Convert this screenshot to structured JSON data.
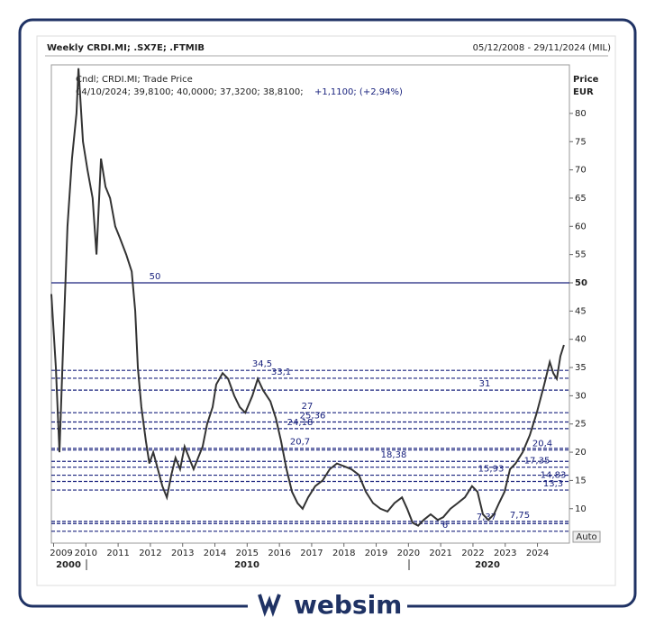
{
  "chart_data": {
    "type": "line",
    "title": "Weekly CRDI.MI; .SX7E; .FTMIB",
    "date_range": "05/12/2008 - 29/11/2024 (MIL)",
    "legend": [
      "Cndl; CRDI.MI; Trade Price",
      "04/10/2024; 39,8100; 40,0000; 37,3200; 38,8100;",
      "+1,1100; (+2,94%)"
    ],
    "y_label": [
      "Price",
      "EUR"
    ],
    "x": [
      2008.93,
      2009.07,
      2009.18,
      2009.29,
      2009.43,
      2009.57,
      2009.71,
      2009.77,
      2009.91,
      2010.05,
      2010.21,
      2010.33,
      2010.47,
      2010.61,
      2010.75,
      2010.91,
      2011.05,
      2011.25,
      2011.42,
      2011.53,
      2011.61,
      2011.72,
      2011.86,
      2011.97,
      2012.09,
      2012.23,
      2012.37,
      2012.51,
      2012.65,
      2012.78,
      2012.92,
      2013.06,
      2013.2,
      2013.34,
      2013.48,
      2013.62,
      2013.76,
      2013.93,
      2014.04,
      2014.24,
      2014.41,
      2014.6,
      2014.77,
      2014.94,
      2015.16,
      2015.33,
      2015.49,
      2015.72,
      2015.89,
      2016.05,
      2016.22,
      2016.39,
      2016.56,
      2016.72,
      2016.89,
      2017.11,
      2017.34,
      2017.56,
      2017.78,
      2018.01,
      2018.23,
      2018.46,
      2018.68,
      2018.9,
      2019.13,
      2019.35,
      2019.57,
      2019.8,
      2019.96,
      2020.13,
      2020.3,
      2020.47,
      2020.69,
      2020.91,
      2021.08,
      2021.3,
      2021.53,
      2021.75,
      2021.97,
      2022.14,
      2022.31,
      2022.48,
      2022.65,
      2022.81,
      2022.98,
      2023.15,
      2023.32,
      2023.54,
      2023.76,
      2023.98,
      2024.21,
      2024.38,
      2024.49,
      2024.6,
      2024.71,
      2024.82
    ],
    "series": [
      {
        "color": "#333333",
        "values": [
          48,
          35,
          20,
          38,
          60,
          72,
          80,
          88,
          75,
          70,
          65,
          55,
          72,
          67,
          65,
          60,
          58,
          55,
          52,
          45,
          35,
          28,
          22,
          18,
          20,
          17,
          14,
          12,
          16,
          19,
          17,
          21,
          19,
          17,
          19,
          21,
          25,
          28,
          32,
          34,
          33,
          30,
          28,
          27,
          30,
          33,
          31,
          29,
          26,
          22,
          17,
          13,
          11,
          10,
          12,
          14,
          15,
          17,
          18,
          17.5,
          17,
          16,
          13,
          11,
          10,
          9.5,
          11,
          12,
          10,
          7.5,
          7,
          8,
          9,
          8,
          8.5,
          10,
          11,
          12,
          14,
          13,
          9,
          8,
          9,
          11,
          13,
          17,
          18,
          20,
          23,
          27,
          32,
          36,
          34,
          33,
          37,
          39
        ]
      }
    ],
    "xlim": [
      2008.93,
      2024.99
    ],
    "ylim": [
      3.9,
      88.6
    ],
    "xticks": [
      2009,
      2010,
      2011,
      2012,
      2013,
      2014,
      2015,
      2016,
      2017,
      2018,
      2019,
      2020,
      2021,
      2022,
      2023,
      2024
    ],
    "yticks": [
      10,
      15,
      20,
      25,
      30,
      35,
      40,
      45,
      50,
      55,
      60,
      65,
      70,
      75,
      80
    ],
    "x_group_labels": [
      "2000",
      "2010",
      "2020"
    ],
    "levels": [
      {
        "value": 50,
        "label": "50"
      },
      {
        "value": 34.5,
        "label": "34,5"
      },
      {
        "value": 33.1,
        "label": "33,1"
      },
      {
        "value": 31,
        "label": "31"
      },
      {
        "value": 27,
        "label": "27"
      },
      {
        "value": 25.36,
        "label": "25,36"
      },
      {
        "value": 24.18,
        "label": "24,18"
      },
      {
        "value": 20.7,
        "label": "20,7"
      },
      {
        "value": 20.4,
        "label": "20,4"
      },
      {
        "value": 18.38,
        "label": "18,38"
      },
      {
        "value": 17.35,
        "label": "17,35"
      },
      {
        "value": 15.93,
        "label": "15,93"
      },
      {
        "value": 14.83,
        "label": "14,83"
      },
      {
        "value": 13.3,
        "label": "13,3"
      },
      {
        "value": 7.75,
        "label": "7,75"
      },
      {
        "value": 7.37,
        "label": "7,37"
      },
      {
        "value": 6,
        "label": "6"
      }
    ],
    "auto_button": "Auto",
    "brand": "websim"
  }
}
